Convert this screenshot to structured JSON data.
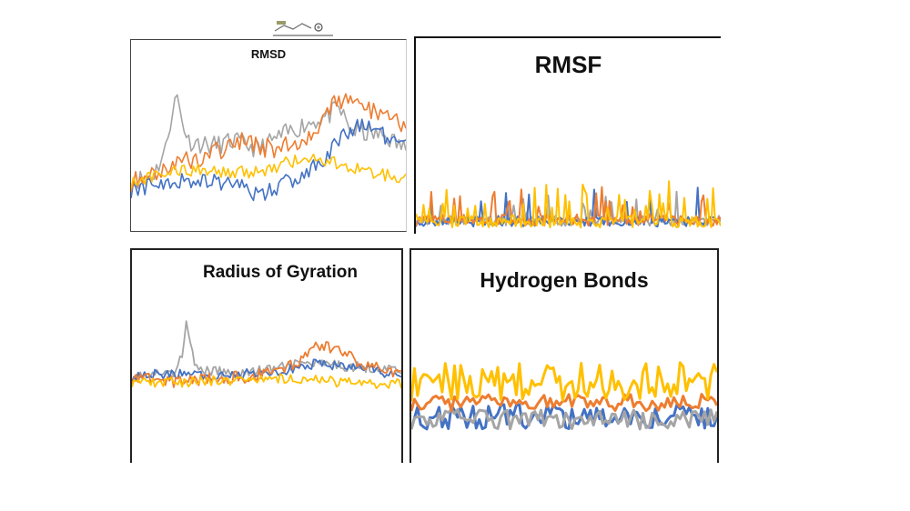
{
  "colors": {
    "blue": "#4472c4",
    "orange": "#ed7d31",
    "gray": "#a5a5a5",
    "yellow": "#ffc000"
  },
  "series_colors": [
    "gray",
    "blue",
    "orange",
    "yellow"
  ],
  "chart_data": [
    {
      "id": "rmsd",
      "type": "line",
      "title": "RMSD",
      "xlabel": "",
      "ylabel": "",
      "points": 120,
      "ylim": [
        0,
        100
      ],
      "grid": false,
      "legend": "none",
      "series": [
        {
          "color": "gray",
          "keyframes": [
            [
              0,
              30
            ],
            [
              10,
              35
            ],
            [
              15,
              50
            ],
            [
              18,
              75
            ],
            [
              20,
              82
            ],
            [
              22,
              68
            ],
            [
              25,
              55
            ],
            [
              35,
              52
            ],
            [
              45,
              55
            ],
            [
              55,
              50
            ],
            [
              65,
              58
            ],
            [
              75,
              65
            ],
            [
              85,
              70
            ],
            [
              90,
              75
            ],
            [
              95,
              62
            ],
            [
              100,
              60
            ],
            [
              110,
              58
            ],
            [
              119,
              50
            ]
          ],
          "noise": 6,
          "seed": 11
        },
        {
          "color": "blue",
          "keyframes": [
            [
              0,
              25
            ],
            [
              10,
              28
            ],
            [
              20,
              30
            ],
            [
              30,
              32
            ],
            [
              45,
              28
            ],
            [
              55,
              22
            ],
            [
              65,
              28
            ],
            [
              75,
              35
            ],
            [
              85,
              45
            ],
            [
              92,
              60
            ],
            [
              100,
              65
            ],
            [
              110,
              58
            ],
            [
              119,
              52
            ]
          ],
          "noise": 5,
          "seed": 22
        },
        {
          "color": "orange",
          "keyframes": [
            [
              0,
              30
            ],
            [
              10,
              35
            ],
            [
              20,
              42
            ],
            [
              30,
              45
            ],
            [
              40,
              50
            ],
            [
              50,
              55
            ],
            [
              60,
              50
            ],
            [
              70,
              52
            ],
            [
              80,
              62
            ],
            [
              85,
              72
            ],
            [
              90,
              80
            ],
            [
              100,
              75
            ],
            [
              110,
              72
            ],
            [
              119,
              65
            ]
          ],
          "noise": 6,
          "seed": 33
        },
        {
          "color": "yellow",
          "keyframes": [
            [
              0,
              30
            ],
            [
              15,
              35
            ],
            [
              30,
              38
            ],
            [
              45,
              35
            ],
            [
              60,
              38
            ],
            [
              75,
              45
            ],
            [
              85,
              42
            ],
            [
              95,
              40
            ],
            [
              105,
              35
            ],
            [
              119,
              33
            ]
          ],
          "noise": 4,
          "seed": 44
        }
      ]
    },
    {
      "id": "rmsf",
      "type": "line",
      "title": "RMSF",
      "xlabel": "",
      "ylabel": "",
      "points": 160,
      "ylim": [
        0,
        100
      ],
      "grid": false,
      "legend": "none",
      "series": [
        {
          "color": "gray",
          "keyframes": [
            [
              0,
              15
            ],
            [
              159,
              15
            ]
          ],
          "noise": 6,
          "seed": 5,
          "spikes": 0.08,
          "spike_h": 20
        },
        {
          "color": "blue",
          "keyframes": [
            [
              0,
              14
            ],
            [
              159,
              14
            ]
          ],
          "noise": 6,
          "seed": 6,
          "spikes": 0.07,
          "spike_h": 30
        },
        {
          "color": "orange",
          "keyframes": [
            [
              0,
              16
            ],
            [
              159,
              16
            ]
          ],
          "noise": 7,
          "seed": 7,
          "spikes": 0.09,
          "spike_h": 25
        },
        {
          "color": "yellow",
          "keyframes": [
            [
              0,
              14
            ],
            [
              159,
              14
            ]
          ],
          "noise": 7,
          "seed": 8,
          "spikes": 0.12,
          "spike_h": 30
        }
      ]
    },
    {
      "id": "rog",
      "type": "line",
      "title": "Radius of Gyration",
      "xlabel": "",
      "ylabel": "",
      "points": 130,
      "ylim": [
        0,
        100
      ],
      "grid": false,
      "legend": "none",
      "series": [
        {
          "color": "gray",
          "keyframes": [
            [
              0,
              40
            ],
            [
              20,
              42
            ],
            [
              24,
              55
            ],
            [
              26,
              85
            ],
            [
              28,
              70
            ],
            [
              30,
              45
            ],
            [
              50,
              42
            ],
            [
              70,
              46
            ],
            [
              80,
              50
            ],
            [
              100,
              48
            ],
            [
              129,
              45
            ]
          ],
          "noise": 4,
          "seed": 101
        },
        {
          "color": "blue",
          "keyframes": [
            [
              0,
              40
            ],
            [
              20,
              42
            ],
            [
              40,
              40
            ],
            [
              60,
              42
            ],
            [
              75,
              45
            ],
            [
              90,
              50
            ],
            [
              100,
              48
            ],
            [
              115,
              45
            ],
            [
              129,
              40
            ]
          ],
          "noise": 4,
          "seed": 102
        },
        {
          "color": "orange",
          "keyframes": [
            [
              0,
              38
            ],
            [
              20,
              36
            ],
            [
              40,
              38
            ],
            [
              60,
              40
            ],
            [
              80,
              50
            ],
            [
              90,
              65
            ],
            [
              95,
              62
            ],
            [
              100,
              60
            ],
            [
              110,
              50
            ],
            [
              120,
              45
            ],
            [
              129,
              42
            ]
          ],
          "noise": 5,
          "seed": 103
        },
        {
          "color": "yellow",
          "keyframes": [
            [
              0,
              35
            ],
            [
              20,
              35
            ],
            [
              40,
              36
            ],
            [
              60,
              38
            ],
            [
              80,
              38
            ],
            [
              100,
              35
            ],
            [
              115,
              33
            ],
            [
              129,
              34
            ]
          ],
          "noise": 4,
          "seed": 104
        }
      ]
    },
    {
      "id": "hb",
      "type": "line",
      "title": "Hydrogen Bonds",
      "xlabel": "",
      "ylabel": "",
      "points": 100,
      "ylim": [
        0,
        100
      ],
      "grid": false,
      "legend": "none",
      "series": [
        {
          "color": "blue",
          "keyframes": [
            [
              0,
              20
            ],
            [
              99,
              20
            ]
          ],
          "noise": 9,
          "seed": 201
        },
        {
          "color": "gray",
          "keyframes": [
            [
              0,
              18
            ],
            [
              99,
              18
            ]
          ],
          "noise": 7,
          "seed": 202
        },
        {
          "color": "orange",
          "keyframes": [
            [
              0,
              30
            ],
            [
              99,
              30
            ]
          ],
          "noise": 6,
          "seed": 203
        },
        {
          "color": "yellow",
          "keyframes": [
            [
              0,
              45
            ],
            [
              99,
              45
            ]
          ],
          "noise": 14,
          "seed": 204
        }
      ]
    }
  ]
}
